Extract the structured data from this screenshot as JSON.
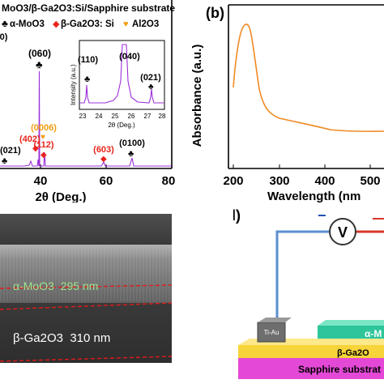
{
  "panel_a": {
    "legend_title": "MoO3/β-Ga2O3:Si/Sapphire substrate",
    "legend_moo3": "α-MoO3",
    "legend_ga2o3": "β-Ga2O3: Si",
    "legend_al2o3": "Al2O3",
    "clipped_label": "(0)",
    "xlabel": "2θ (Deg.)",
    "xticks": [
      "40",
      "60",
      "80"
    ],
    "peaks": {
      "p021": "(021)",
      "p060": "(060)",
      "p402": "(402)",
      "p0006": "(0006)",
      "p112": "(112)",
      "p603": "(603)",
      "p0100": "(0100)"
    },
    "inset": {
      "ylabel": "Intensity (a.u.)",
      "xlabel": "2θ (Deg.)",
      "xticks": [
        "23",
        "24",
        "25",
        "26",
        "27",
        "28"
      ],
      "p110": "(110)",
      "p040": "(040)",
      "p021": "(021)"
    },
    "colors": {
      "trace": "#9b30d9",
      "ga2o3": "#e8241c",
      "al2o3": "#f39c12"
    }
  },
  "panel_b": {
    "label": "(b)",
    "ylabel": "Absorbance (a.u.)",
    "xlabel": "Wavelength (nm",
    "xticks": [
      "200",
      "300",
      "400",
      "500"
    ],
    "trace_color": "#f08a24"
  },
  "panel_c": {
    "moo3_label": "α-MoO3  295 nm",
    "ga2o3_label": "β-Ga2O3  310 nm"
  },
  "panel_d": {
    "label": "(d)",
    "meter": "V",
    "minus": "−",
    "contact": "Ti-Au",
    "moo3_layer": "α-M",
    "ga2o3_layer": "β-Ga2O",
    "substrate": "Sapphire substrat"
  },
  "chart_data": [
    {
      "type": "line",
      "xlabel": "2θ (Deg.)",
      "xlim": [
        20,
        80
      ],
      "series": [
        {
          "x": [
            20,
            25.7,
            27.3,
            38.4,
            41.7,
            59.0,
            67.3,
            80
          ],
          "y": [
            0.02,
            1.0,
            0.05,
            0.12,
            0.06,
            0.05,
            0.09,
            0.02
          ]
        }
      ]
    },
    {
      "type": "line",
      "xlabel": "Wavelength (nm",
      "ylabel": "Absorbance (a.u.)",
      "xlim": [
        180,
        560
      ],
      "series": [
        {
          "x": [
            190,
            200,
            215,
            225,
            235,
            250,
            265,
            280,
            300,
            350,
            400,
            450,
            500,
            550
          ],
          "y": [
            0.55,
            0.78,
            0.93,
            0.96,
            0.92,
            0.72,
            0.52,
            0.42,
            0.38,
            0.33,
            0.3,
            0.29,
            0.29,
            0.29
          ]
        }
      ]
    }
  ]
}
